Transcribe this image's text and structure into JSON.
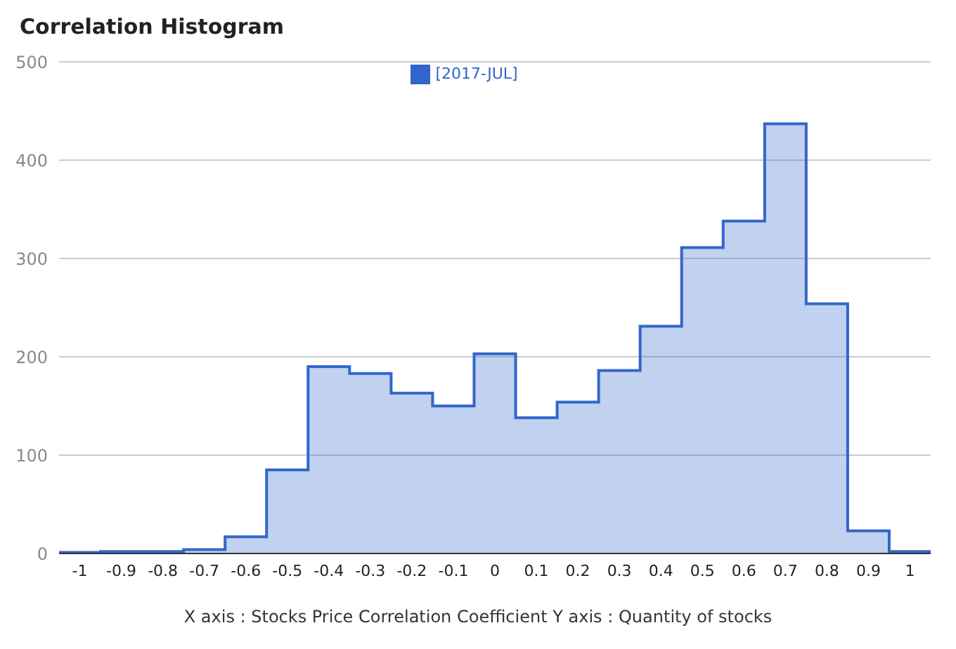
{
  "chart_data": {
    "type": "histogram",
    "title": "Correlation Histogram",
    "xlabel": "X axis : Stocks Price Correlation Coefficient  Y axis : Quantity of stocks",
    "bins": [
      -1.05,
      -0.95,
      -0.85,
      -0.75,
      -0.65,
      -0.55,
      -0.45,
      -0.35,
      -0.25,
      -0.15,
      -0.05,
      0.05,
      0.15,
      0.25,
      0.35,
      0.45,
      0.55,
      0.65,
      0.75,
      0.85,
      0.95,
      1.05
    ],
    "series": [
      {
        "name": "[2017-JUL]",
        "color": "#3366cc",
        "values": [
          1,
          2,
          2,
          4,
          17,
          85,
          190,
          183,
          163,
          150,
          203,
          138,
          154,
          186,
          231,
          311,
          338,
          437,
          254,
          23,
          2
        ]
      }
    ],
    "xlim": [
      -1.05,
      1.05
    ],
    "xticks": [
      -1,
      -0.9,
      -0.8,
      -0.7,
      -0.6,
      -0.5,
      -0.4,
      -0.3,
      -0.2,
      -0.1,
      0,
      0.1,
      0.2,
      0.3,
      0.4,
      0.5,
      0.6,
      0.7,
      0.8,
      0.9,
      1
    ],
    "ylim": [
      0,
      500
    ],
    "yticks": [
      0,
      100,
      200,
      300,
      400,
      500
    ],
    "grid": "y",
    "legend": "top"
  }
}
